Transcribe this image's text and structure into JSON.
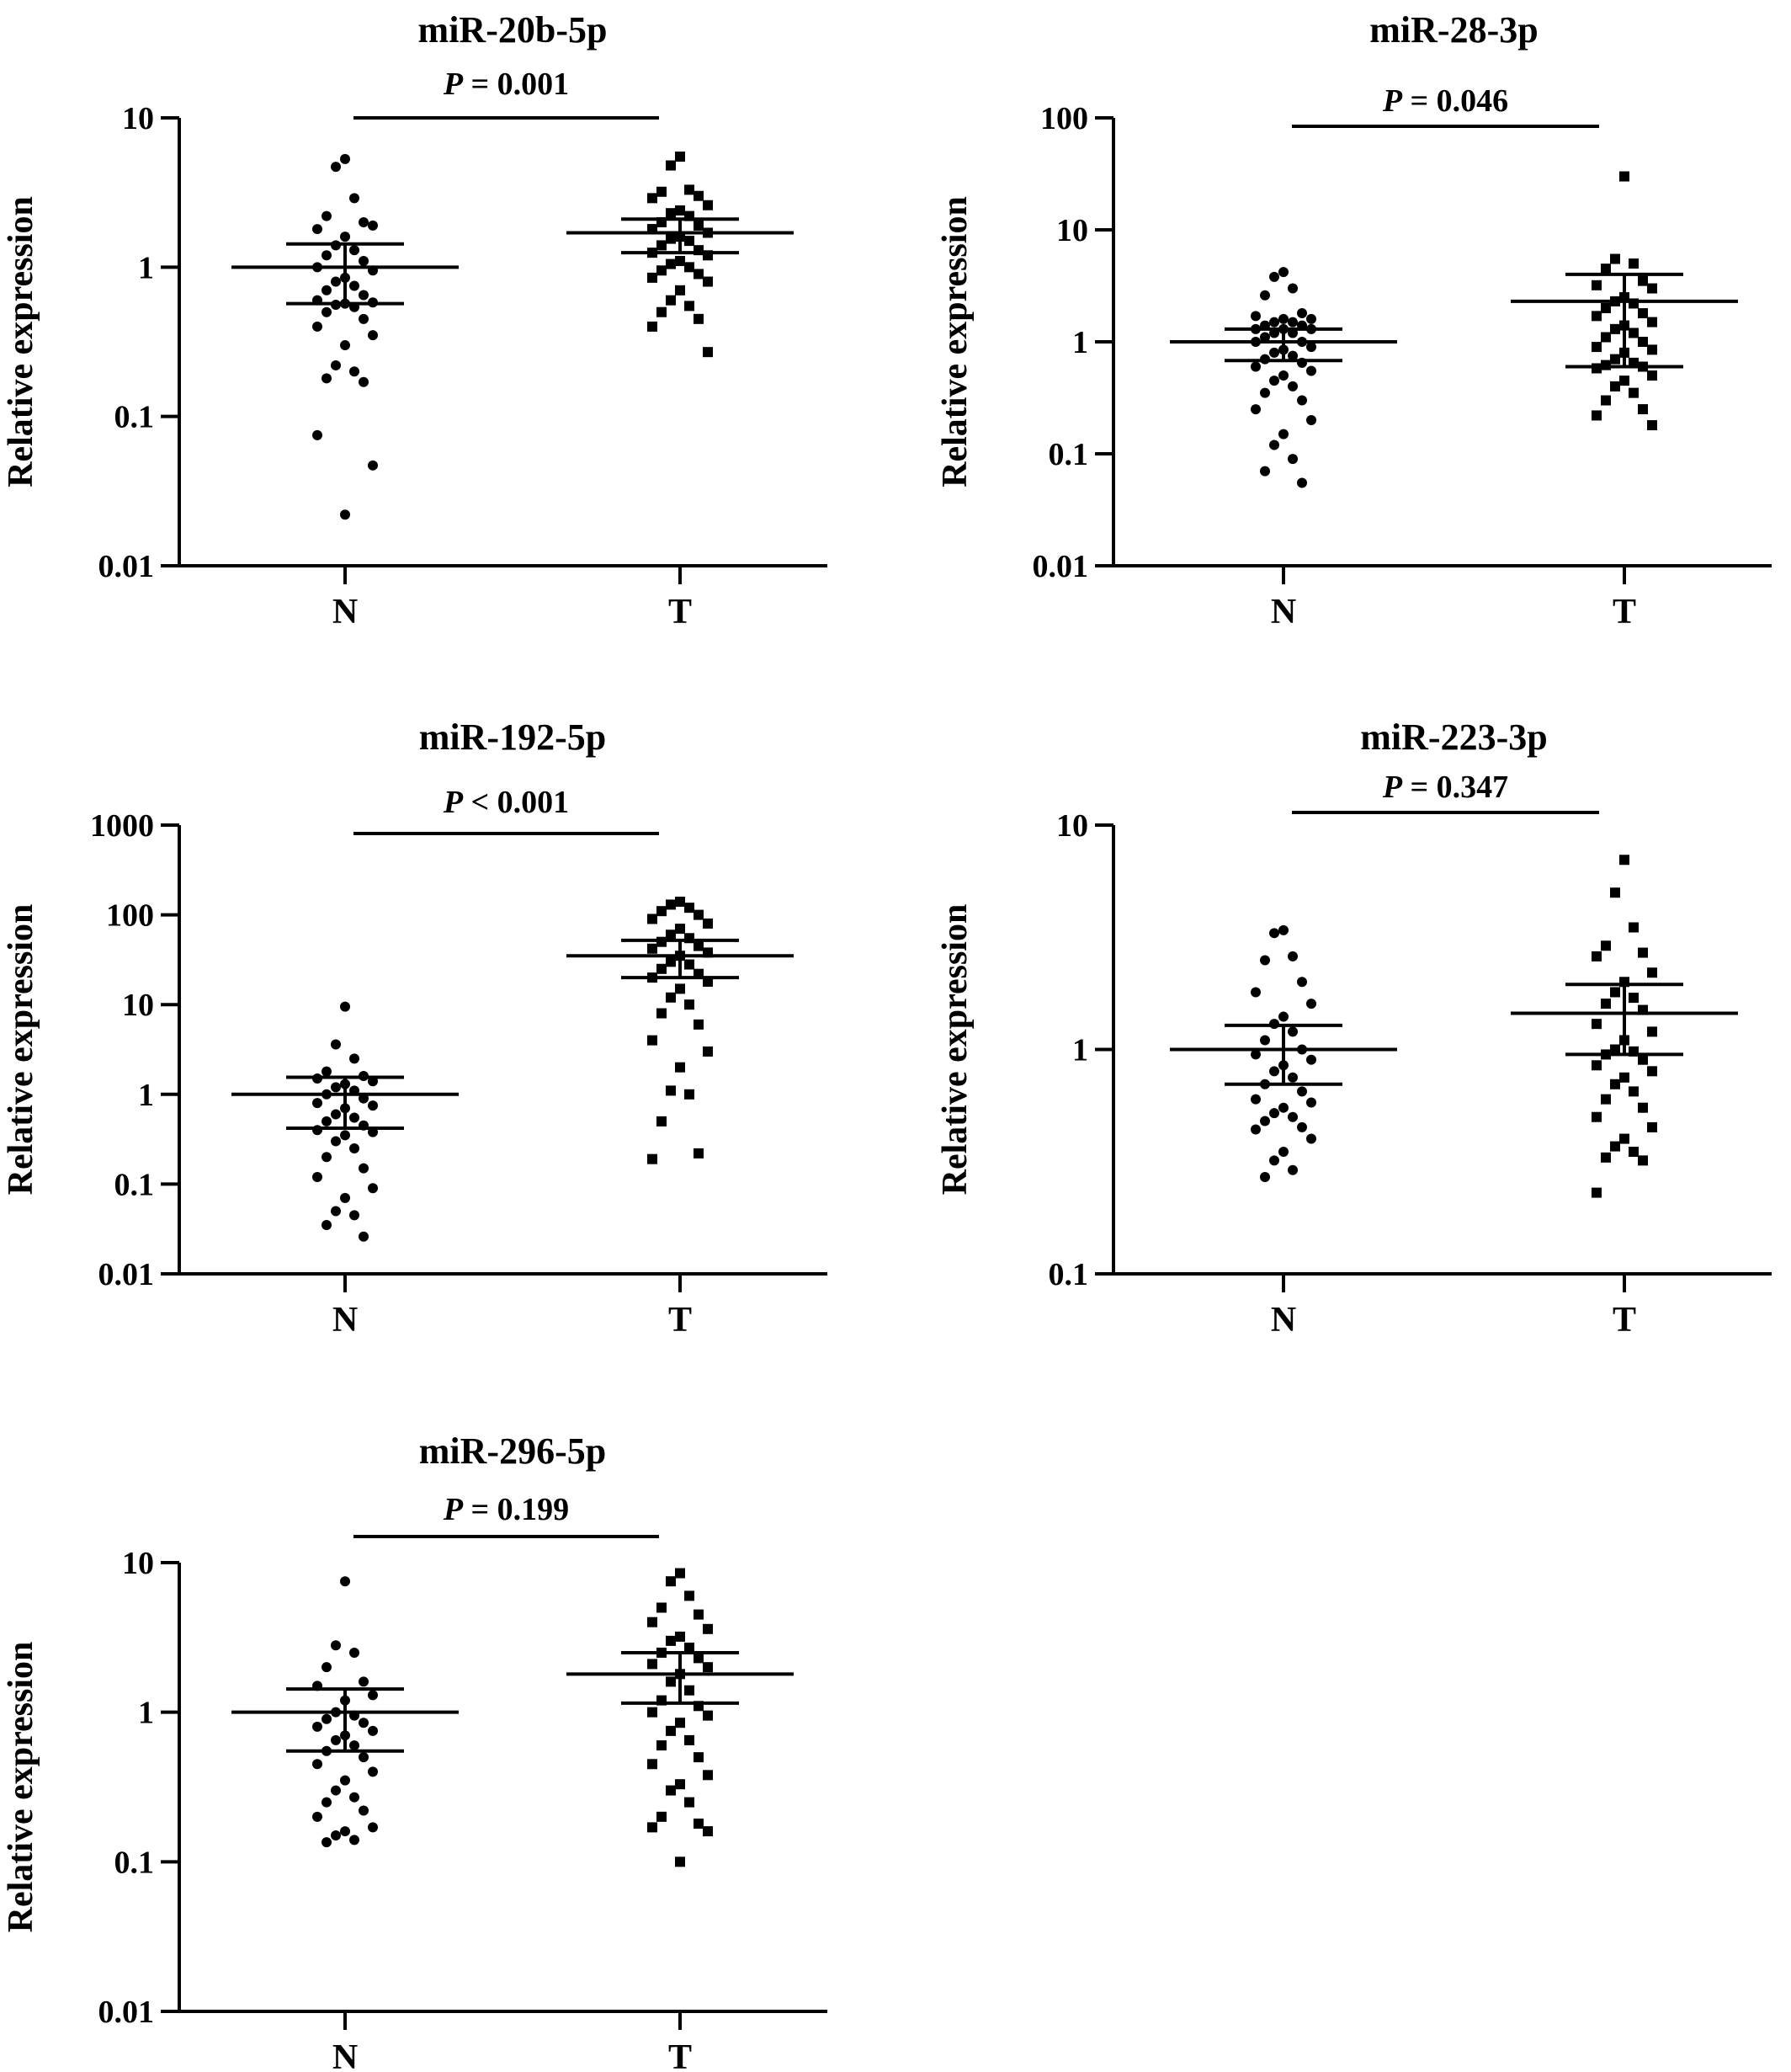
{
  "chart_data": [
    {
      "type": "scatter",
      "title": "miR-20b-5p",
      "pvalue": {
        "label": "P",
        "text": " = 0.001"
      },
      "ylabel": "Relative expression",
      "yscale": "log",
      "ylim": [
        0.01,
        10
      ],
      "yticks": [
        "0.01",
        "0.1",
        "1",
        "10"
      ],
      "categories": [
        "N",
        "T"
      ],
      "series": [
        {
          "category": "N",
          "marker": "circle",
          "mean": 1.0,
          "sem_low": 0.57,
          "sem_high": 1.43,
          "values": [
            5.3,
            4.7,
            2.9,
            2.2,
            2.0,
            1.8,
            1.9,
            1.6,
            1.4,
            1.3,
            1.2,
            1.1,
            1.0,
            0.95,
            0.85,
            0.8,
            0.75,
            0.7,
            0.65,
            0.6,
            0.58,
            0.57,
            0.56,
            0.54,
            0.5,
            0.45,
            0.4,
            0.35,
            0.3,
            0.22,
            0.2,
            0.18,
            0.17,
            0.075,
            0.047,
            0.022
          ]
        },
        {
          "category": "T",
          "marker": "square",
          "mean": 1.7,
          "sem_low": 1.25,
          "sem_high": 2.1,
          "values": [
            5.5,
            4.8,
            3.3,
            3.2,
            3.0,
            2.9,
            2.6,
            2.4,
            2.3,
            2.2,
            2.0,
            1.9,
            1.8,
            1.7,
            1.6,
            1.55,
            1.5,
            1.4,
            1.3,
            1.25,
            1.2,
            1.1,
            1.05,
            1.0,
            0.95,
            0.9,
            0.85,
            0.8,
            0.7,
            0.6,
            0.55,
            0.5,
            0.45,
            0.4,
            0.27
          ]
        }
      ]
    },
    {
      "type": "scatter",
      "title": "miR-28-3p",
      "pvalue": {
        "label": "P",
        "text": " = 0.046"
      },
      "ylabel": "Relative expression",
      "yscale": "log",
      "ylim": [
        0.01,
        100
      ],
      "yticks": [
        "0.01",
        "0.1",
        "1",
        "10",
        "100"
      ],
      "categories": [
        "N",
        "T"
      ],
      "series": [
        {
          "category": "N",
          "marker": "circle",
          "mean": 1.0,
          "sem_low": 0.68,
          "sem_high": 1.3,
          "values": [
            4.2,
            3.8,
            3.0,
            2.6,
            1.8,
            1.7,
            1.6,
            1.6,
            1.5,
            1.5,
            1.4,
            1.4,
            1.3,
            1.3,
            1.3,
            1.2,
            1.2,
            1.1,
            1.0,
            1.0,
            0.9,
            0.85,
            0.8,
            0.75,
            0.7,
            0.65,
            0.6,
            0.55,
            0.5,
            0.45,
            0.4,
            0.35,
            0.3,
            0.25,
            0.2,
            0.15,
            0.12,
            0.09,
            0.07,
            0.055
          ]
        },
        {
          "category": "T",
          "marker": "square",
          "mean": 2.3,
          "sem_low": 0.6,
          "sem_high": 4.0,
          "values": [
            30.0,
            5.5,
            5.0,
            4.5,
            3.5,
            3.2,
            3.0,
            2.5,
            2.3,
            2.2,
            2.0,
            1.8,
            1.7,
            1.5,
            1.4,
            1.3,
            1.2,
            1.1,
            1.0,
            0.9,
            0.85,
            0.8,
            0.7,
            0.65,
            0.62,
            0.6,
            0.58,
            0.5,
            0.45,
            0.4,
            0.35,
            0.3,
            0.25,
            0.22,
            0.18
          ]
        }
      ]
    },
    {
      "type": "scatter",
      "title": "miR-192-5p",
      "pvalue": {
        "label": "P",
        "text": " < 0.001"
      },
      "ylabel": "Relative expression",
      "yscale": "log",
      "ylim": [
        0.01,
        1000
      ],
      "yticks": [
        "0.01",
        "0.1",
        "1",
        "10",
        "100",
        "1000"
      ],
      "categories": [
        "N",
        "T"
      ],
      "series": [
        {
          "category": "N",
          "marker": "circle",
          "mean": 1.0,
          "sem_low": 0.42,
          "sem_high": 1.55,
          "values": [
            9.5,
            3.6,
            2.5,
            1.8,
            1.6,
            1.5,
            1.4,
            1.3,
            1.2,
            1.1,
            1.0,
            0.9,
            0.8,
            0.75,
            0.7,
            0.6,
            0.55,
            0.5,
            0.45,
            0.4,
            0.38,
            0.35,
            0.3,
            0.25,
            0.2,
            0.15,
            0.12,
            0.09,
            0.07,
            0.05,
            0.045,
            0.035,
            0.026
          ]
        },
        {
          "category": "T",
          "marker": "square",
          "mean": 35.0,
          "sem_low": 20.0,
          "sem_high": 52.0,
          "values": [
            140.0,
            130.0,
            120.0,
            110.0,
            100.0,
            90.0,
            80.0,
            70.0,
            60.0,
            55.0,
            50.0,
            45.0,
            42.0,
            38.0,
            35.0,
            30.0,
            28.0,
            25.0,
            22.0,
            20.0,
            18.0,
            15.0,
            12.0,
            10.0,
            8.0,
            6.0,
            4.0,
            3.0,
            2.0,
            1.1,
            1.0,
            0.5,
            0.22,
            0.19
          ]
        }
      ]
    },
    {
      "type": "scatter",
      "title": "miR-223-3p",
      "pvalue": {
        "label": "P",
        "text": " = 0.347"
      },
      "ylabel": "Relative expression",
      "yscale": "log",
      "ylim": [
        0.1,
        10
      ],
      "yticks": [
        "0.1",
        "1",
        "10"
      ],
      "categories": [
        "N",
        "T"
      ],
      "series": [
        {
          "category": "N",
          "marker": "circle",
          "mean": 1.0,
          "sem_low": 0.7,
          "sem_high": 1.28,
          "values": [
            3.4,
            3.3,
            2.6,
            2.5,
            2.0,
            1.8,
            1.6,
            1.4,
            1.3,
            1.2,
            1.1,
            1.0,
            0.95,
            0.9,
            0.85,
            0.8,
            0.75,
            0.7,
            0.65,
            0.6,
            0.58,
            0.55,
            0.52,
            0.5,
            0.48,
            0.45,
            0.44,
            0.4,
            0.35,
            0.32,
            0.29,
            0.27
          ]
        },
        {
          "category": "T",
          "marker": "square",
          "mean": 1.45,
          "sem_low": 0.95,
          "sem_high": 1.95,
          "values": [
            7.0,
            5.0,
            3.5,
            2.9,
            2.7,
            2.6,
            2.2,
            2.0,
            1.8,
            1.7,
            1.6,
            1.5,
            1.3,
            1.2,
            1.1,
            1.0,
            0.98,
            0.95,
            0.9,
            0.85,
            0.8,
            0.75,
            0.7,
            0.65,
            0.6,
            0.55,
            0.5,
            0.45,
            0.4,
            0.37,
            0.35,
            0.33,
            0.32,
            0.23
          ]
        }
      ]
    },
    {
      "type": "scatter",
      "title": "miR-296-5p",
      "pvalue": {
        "label": "P",
        "text": " = 0.199"
      },
      "ylabel": "Relative expression",
      "yscale": "log",
      "ylim": [
        0.01,
        10
      ],
      "yticks": [
        "0.01",
        "0.1",
        "1",
        "10"
      ],
      "categories": [
        "N",
        "T"
      ],
      "series": [
        {
          "category": "N",
          "marker": "circle",
          "mean": 1.0,
          "sem_low": 0.55,
          "sem_high": 1.43,
          "values": [
            7.5,
            2.8,
            2.5,
            2.0,
            1.6,
            1.5,
            1.3,
            1.2,
            1.0,
            0.95,
            0.9,
            0.85,
            0.8,
            0.75,
            0.7,
            0.65,
            0.6,
            0.55,
            0.5,
            0.45,
            0.4,
            0.35,
            0.3,
            0.27,
            0.25,
            0.22,
            0.2,
            0.17,
            0.16,
            0.15,
            0.14,
            0.135
          ]
        },
        {
          "category": "T",
          "marker": "square",
          "mean": 1.8,
          "sem_low": 1.15,
          "sem_high": 2.5,
          "values": [
            8.5,
            7.5,
            6.0,
            5.0,
            4.5,
            4.0,
            3.6,
            3.2,
            3.0,
            2.7,
            2.5,
            2.3,
            2.1,
            2.0,
            1.8,
            1.6,
            1.4,
            1.2,
            1.1,
            1.0,
            0.95,
            0.85,
            0.75,
            0.65,
            0.6,
            0.5,
            0.45,
            0.38,
            0.33,
            0.3,
            0.25,
            0.2,
            0.18,
            0.17,
            0.16,
            0.1
          ]
        }
      ]
    }
  ]
}
